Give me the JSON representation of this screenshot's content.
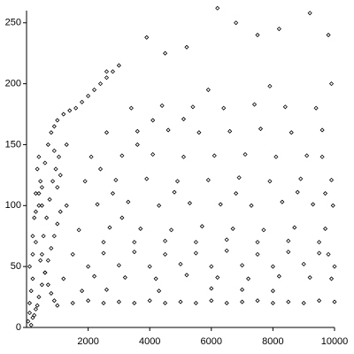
{
  "chart_data": {
    "type": "scatter",
    "marker": "diamond",
    "color": "#000000",
    "x": [
      50,
      100,
      150,
      200,
      250,
      300,
      350,
      400,
      450,
      500,
      100,
      200,
      300,
      400,
      500,
      600,
      700,
      800,
      900,
      1000,
      200,
      300,
      400,
      500,
      600,
      700,
      800,
      900,
      1000,
      1100,
      1200,
      1400,
      1600,
      1800,
      2000,
      2200,
      2400,
      2600,
      2800,
      3000,
      1500,
      2000,
      2500,
      3000,
      3500,
      4000,
      4500,
      5000,
      5500,
      6000,
      6500,
      7000,
      7500,
      8000,
      8500,
      9000,
      9500,
      10000,
      1800,
      2600,
      1200,
      2200,
      3200,
      4200,
      5200,
      6200,
      7200,
      8200,
      9200,
      9900,
      1500,
      2500,
      3500,
      4500,
      5500,
      6500,
      7500,
      8500,
      9500,
      9800,
      1700,
      2700,
      3700,
      4700,
      5700,
      6700,
      7700,
      8700,
      9700,
      3100,
      1300,
      2300,
      3300,
      4300,
      5300,
      6300,
      7300,
      8300,
      9300,
      9950,
      1900,
      2900,
      3900,
      4900,
      5900,
      6900,
      7900,
      8900,
      9900,
      2400,
      2100,
      3100,
      4100,
      5100,
      6100,
      7100,
      8100,
      9100,
      9600,
      3600,
      2600,
      3600,
      4600,
      5600,
      6600,
      7600,
      8600,
      9600,
      4100,
      5100,
      3400,
      4400,
      5400,
      6400,
      7400,
      8400,
      9400,
      5900,
      7900,
      9900,
      2600,
      3900,
      4500,
      5200,
      6200,
      6800,
      7500,
      8200,
      9200,
      9800,
      100,
      200,
      300,
      400,
      500,
      600,
      700,
      800,
      900,
      1000,
      150,
      250,
      350,
      450,
      550,
      650,
      750,
      850,
      950,
      1050,
      2000,
      3000,
      4000,
      5000,
      6000,
      7000,
      8000,
      9000,
      10000,
      2500,
      3500,
      4500,
      5500,
      6500,
      7500,
      8500,
      9500,
      2800,
      4800,
      6800,
      8800,
      9700,
      1000,
      1100,
      1300,
      900,
      4300,
      6000,
      7000,
      8000
    ],
    "y": [
      5,
      12,
      30,
      60,
      90,
      110,
      130,
      140,
      120,
      100,
      20,
      40,
      70,
      100,
      115,
      135,
      150,
      160,
      165,
      170,
      8,
      15,
      25,
      35,
      45,
      55,
      65,
      75,
      85,
      95,
      175,
      178,
      180,
      185,
      190,
      195,
      200,
      205,
      210,
      215,
      20,
      22,
      20,
      21,
      20,
      22,
      20,
      21,
      20,
      22,
      20,
      21,
      22,
      20,
      21,
      20,
      22,
      21,
      30,
      31,
      40,
      42,
      41,
      40,
      43,
      41,
      40,
      42,
      41,
      40,
      60,
      61,
      62,
      60,
      61,
      63,
      60,
      62,
      61,
      60,
      80,
      82,
      81,
      80,
      83,
      81,
      80,
      82,
      81,
      90,
      100,
      101,
      103,
      100,
      102,
      101,
      100,
      103,
      101,
      100,
      120,
      121,
      122,
      120,
      121,
      123,
      120,
      122,
      121,
      130,
      140,
      141,
      142,
      140,
      141,
      142,
      140,
      141,
      140,
      150,
      160,
      161,
      162,
      160,
      161,
      163,
      160,
      162,
      170,
      171,
      180,
      182,
      181,
      180,
      183,
      181,
      180,
      195,
      198,
      200,
      210,
      238,
      225,
      230,
      262,
      250,
      240,
      245,
      258,
      240,
      50,
      75,
      95,
      110,
      60,
      45,
      35,
      28,
      22,
      18,
      2,
      10,
      18,
      55,
      75,
      90,
      105,
      120,
      130,
      140,
      50,
      51,
      50,
      52,
      50,
      51,
      50,
      52,
      50,
      70,
      70,
      71,
      70,
      72,
      70,
      71,
      70,
      110,
      111,
      110,
      111,
      110,
      115,
      125,
      150,
      145,
      30,
      32,
      31,
      30
    ],
    "xlim": [
      0,
      10000
    ],
    "ylim": [
      0,
      260
    ],
    "xticks": [
      2000,
      4000,
      6000,
      8000,
      10000
    ],
    "yticks": [
      0,
      50,
      100,
      150,
      200,
      250
    ]
  }
}
